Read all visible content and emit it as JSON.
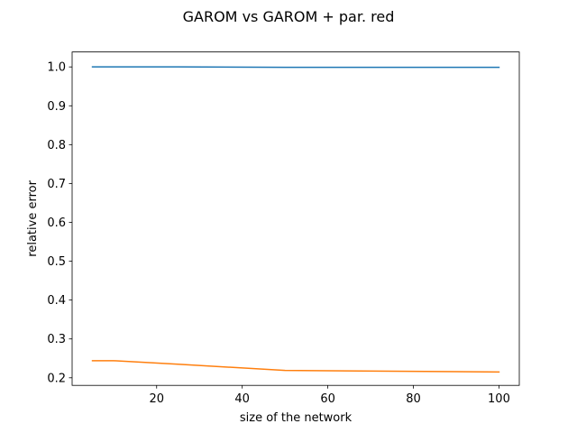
{
  "chart_data": {
    "type": "line",
    "title": "GAROM vs GAROM + par. red",
    "xlabel": "size of the network",
    "ylabel": "relative error",
    "xlim": [
      0.25,
      104.75
    ],
    "ylim": [
      0.1805,
      1.0385
    ],
    "xticks": [
      20,
      40,
      60,
      80,
      100
    ],
    "yticks": [
      0.2,
      0.3,
      0.4,
      0.5,
      0.6,
      0.7,
      0.8,
      0.9,
      1.0
    ],
    "xtick_labels": [
      "20",
      "40",
      "60",
      "80",
      "100"
    ],
    "ytick_labels": [
      "0.2",
      "0.3",
      "0.4",
      "0.5",
      "0.6",
      "0.7",
      "0.8",
      "0.9",
      "1.0"
    ],
    "grid": false,
    "legend": "none",
    "series": [
      {
        "color": "#1f77b4",
        "x": [
          5,
          10,
          25,
          50,
          75,
          100
        ],
        "y": [
          1.0,
          1.0,
          1.0,
          0.999,
          0.999,
          0.999
        ]
      },
      {
        "color": "#ff7f0e",
        "x": [
          5,
          10,
          25,
          50,
          75,
          100
        ],
        "y": [
          0.244,
          0.244,
          0.235,
          0.219,
          0.217,
          0.215
        ]
      }
    ]
  }
}
